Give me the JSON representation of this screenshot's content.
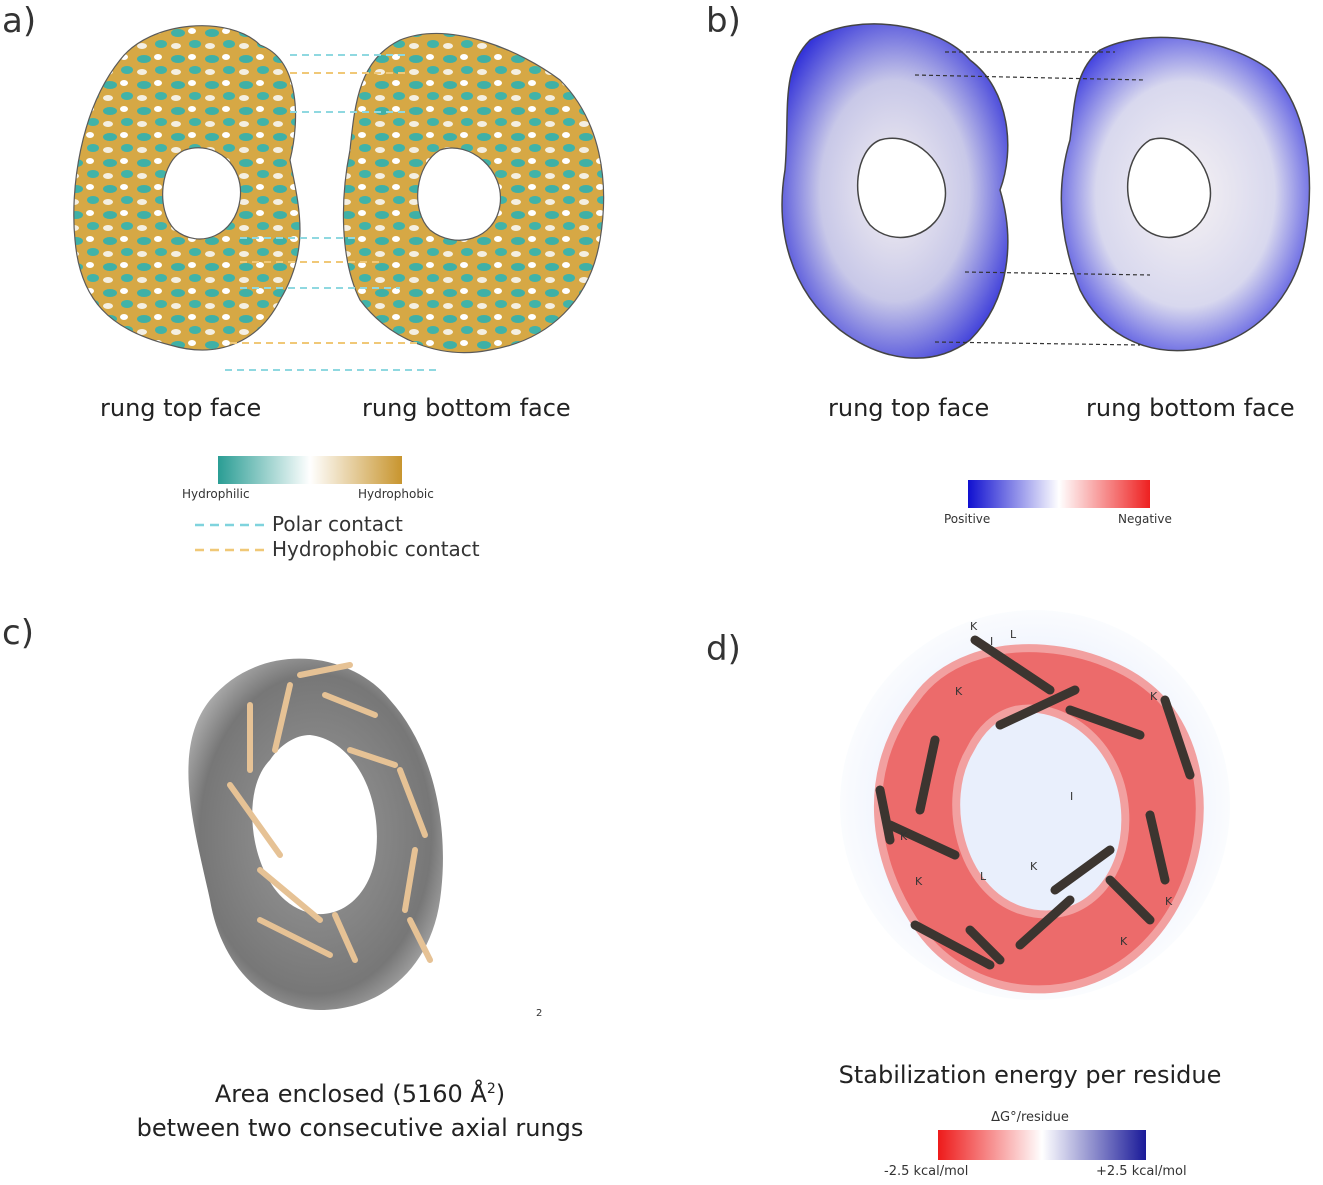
{
  "panels": {
    "a": {
      "label": "a)",
      "caption_left": "rung top face",
      "caption_right": "rung bottom face",
      "colorbar": {
        "min_label": "Hydrophilic",
        "max_label": "Hydrophobic",
        "colors": [
          "#2a9d94",
          "#ffffff",
          "#c8952e"
        ]
      },
      "legend": [
        {
          "label": "Polar contact",
          "color": "#7fd3dd"
        },
        {
          "label": "Hydrophobic contact",
          "color": "#f0c877"
        }
      ]
    },
    "b": {
      "label": "b)",
      "caption_left": "rung top face",
      "caption_right": "rung bottom face",
      "colorbar": {
        "min_label": "Positive",
        "max_label": "Negative",
        "colors": [
          "#1010d0",
          "#ffffff",
          "#ee2020"
        ]
      }
    },
    "c": {
      "label": "c)",
      "stray_mark": "2",
      "caption_line1_prefix": "Area enclosed (5160 Å",
      "caption_line1_sup": "2",
      "caption_line1_suffix": ")",
      "caption_line2": "between two consecutive axial rungs"
    },
    "d": {
      "label": "d)",
      "caption": "Stabilization energy per residue",
      "colorbar": {
        "title": "ΔG°/residue",
        "min_label": "-2.5 kcal/mol",
        "max_label": "+2.5 kcal/mol",
        "colors": [
          "#ee1a1a",
          "#ffffff",
          "#1a1a99"
        ]
      },
      "residue_labels": [
        "K",
        "I",
        "L"
      ]
    }
  }
}
